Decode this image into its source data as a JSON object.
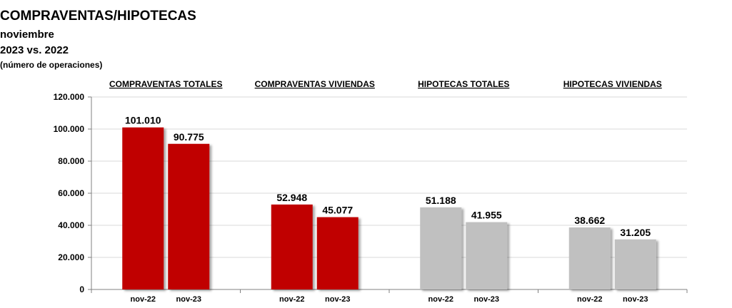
{
  "header": {
    "title": "COMPRAVENTAS/HIPOTECAS",
    "subtitle1": "noviembre",
    "subtitle2": "2023 vs. 2022",
    "subtitle3": "(número de operaciones)"
  },
  "chart_data": {
    "type": "bar",
    "title": "COMPRAVENTAS/HIPOTECAS",
    "ylim": [
      0,
      120000
    ],
    "yticks": [
      0,
      20000,
      40000,
      60000,
      80000,
      100000,
      120000
    ],
    "ytick_labels": [
      "0",
      "20.000",
      "40.000",
      "60.000",
      "80.000",
      "100.000",
      "120.000"
    ],
    "grid": true,
    "groups": [
      {
        "name": "COMPRAVENTAS TOTALES",
        "color": "#c00000",
        "bars": [
          {
            "category": "nov-22",
            "value": 101010,
            "label": "101.010"
          },
          {
            "category": "nov-23",
            "value": 90775,
            "label": "90.775"
          }
        ]
      },
      {
        "name": "COMPRAVENTAS VIVIENDAS",
        "color": "#c00000",
        "bars": [
          {
            "category": "nov-22",
            "value": 52948,
            "label": "52.948"
          },
          {
            "category": "nov-23",
            "value": 45077,
            "label": "45.077"
          }
        ]
      },
      {
        "name": "HIPOTECAS TOTALES",
        "color": "#c0c0c0",
        "bars": [
          {
            "category": "nov-22",
            "value": 51188,
            "label": "51.188"
          },
          {
            "category": "nov-23",
            "value": 41955,
            "label": "41.955"
          }
        ]
      },
      {
        "name": "HIPOTECAS VIVIENDAS",
        "color": "#c0c0c0",
        "bars": [
          {
            "category": "nov-22",
            "value": 38662,
            "label": "38.662"
          },
          {
            "category": "nov-23",
            "value": 31205,
            "label": "31.205"
          }
        ]
      }
    ]
  }
}
